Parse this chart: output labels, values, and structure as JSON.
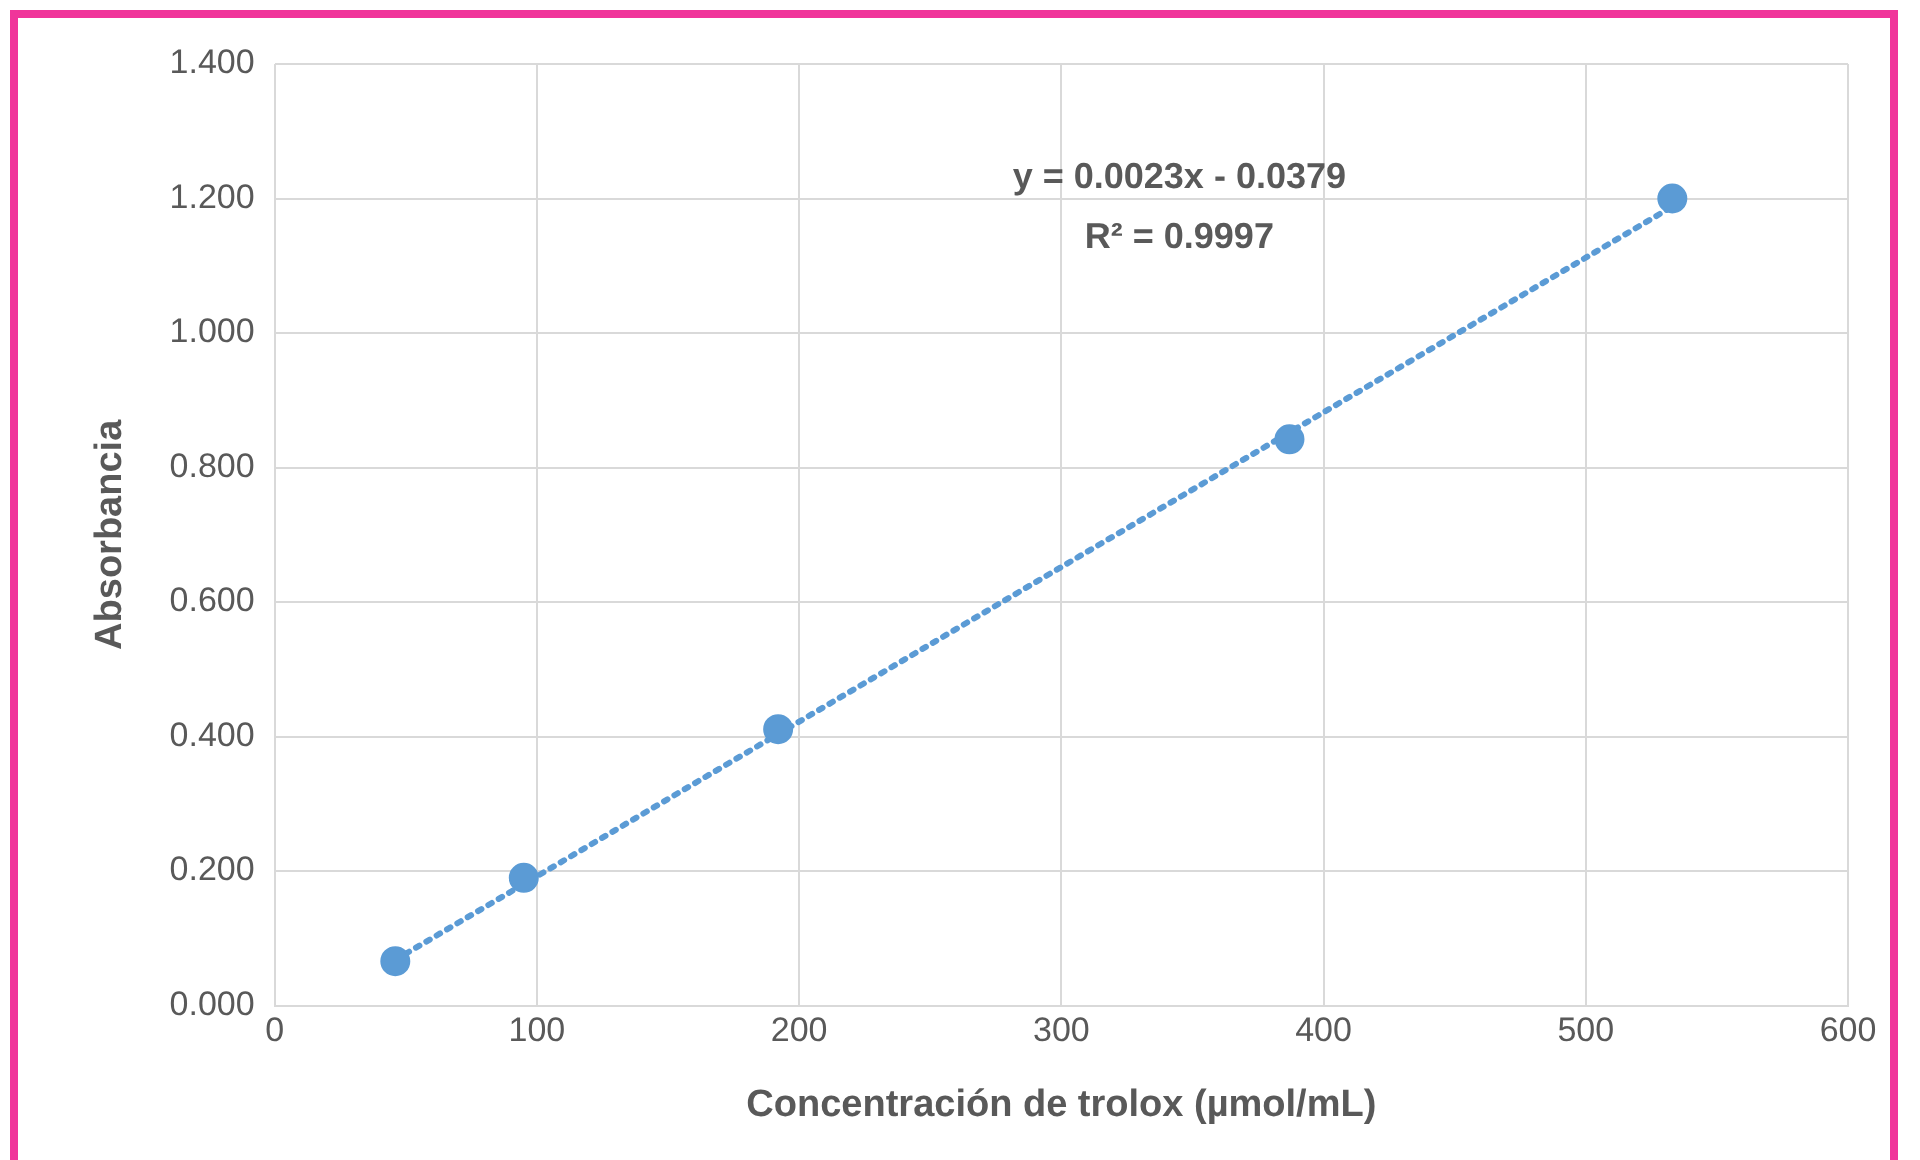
{
  "chart_data": {
    "type": "scatter",
    "xlabel": "Concentración de trolox (µmol/mL)",
    "ylabel": "Absorbancia",
    "xlim": [
      0,
      600
    ],
    "xticks": [
      0,
      100,
      200,
      300,
      400,
      500,
      600
    ],
    "ylim": [
      0,
      1.4
    ],
    "yticks": [
      {
        "value": 0,
        "label": "0.000"
      },
      {
        "value": 0.2,
        "label": "0.200"
      },
      {
        "value": 0.4,
        "label": "0.400"
      },
      {
        "value": 0.6,
        "label": "0.600"
      },
      {
        "value": 0.8,
        "label": "0.800"
      },
      {
        "value": 1,
        "label": "1.000"
      },
      {
        "value": 1.2,
        "label": "1.200"
      },
      {
        "value": 1.4,
        "label": "1.400"
      }
    ],
    "grid": true,
    "legend": false,
    "annotations": [
      "y = 0.0023x - 0.0379",
      "R² = 0.9997"
    ],
    "series": [
      {
        "type": "scatter",
        "color": "#5b9bd5",
        "marker": "circle",
        "x": [
          46,
          95,
          192,
          387,
          533
        ],
        "values": [
          0.066,
          0.19,
          0.411,
          0.842,
          1.2
        ]
      },
      {
        "type": "line",
        "color": "#5b9bd5",
        "marker": "none",
        "line_style": "dotted",
        "x": [
          46,
          533
        ],
        "values": [
          0.068,
          1.188
        ]
      }
    ]
  }
}
